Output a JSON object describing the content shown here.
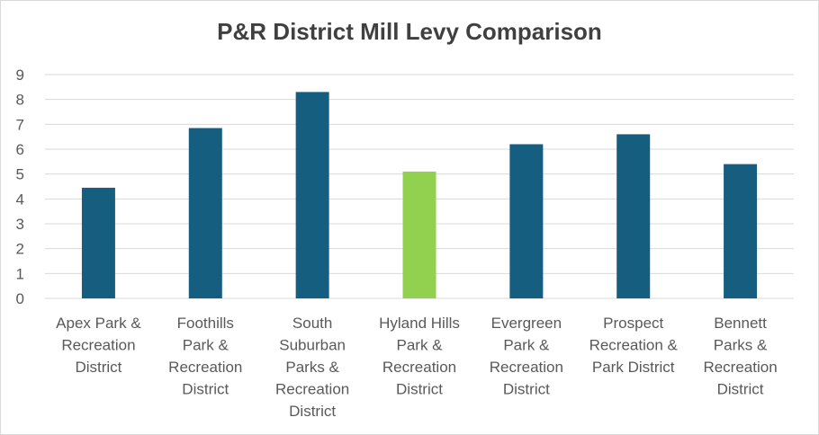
{
  "chart_data": {
    "type": "bar",
    "title": "P&R District Mill Levy Comparison",
    "xlabel": "",
    "ylabel": "",
    "ylim": [
      0,
      9
    ],
    "yticks": [
      0,
      1,
      2,
      3,
      4,
      5,
      6,
      7,
      8,
      9
    ],
    "grid": true,
    "legend": "none",
    "categories": [
      [
        "Apex Park &",
        "Recreation",
        "District"
      ],
      [
        "Foothills",
        "Park &",
        "Recreation",
        "District"
      ],
      [
        "South",
        "Suburban",
        "Parks &",
        "Recreation",
        "District"
      ],
      [
        "Hyland Hills",
        "Park &",
        "Recreation",
        "District"
      ],
      [
        "Evergreen",
        "Park &",
        "Recreation",
        "District"
      ],
      [
        "Prospect",
        "Recreation &",
        "Park District"
      ],
      [
        "Bennett",
        "Parks &",
        "Recreation",
        "District"
      ]
    ],
    "values": [
      4.45,
      6.85,
      8.3,
      5.1,
      6.2,
      6.6,
      5.4
    ],
    "colors": [
      "#155e80",
      "#155e80",
      "#155e80",
      "#92d050",
      "#155e80",
      "#155e80",
      "#155e80"
    ],
    "grid_color": "#d9d9d9"
  }
}
